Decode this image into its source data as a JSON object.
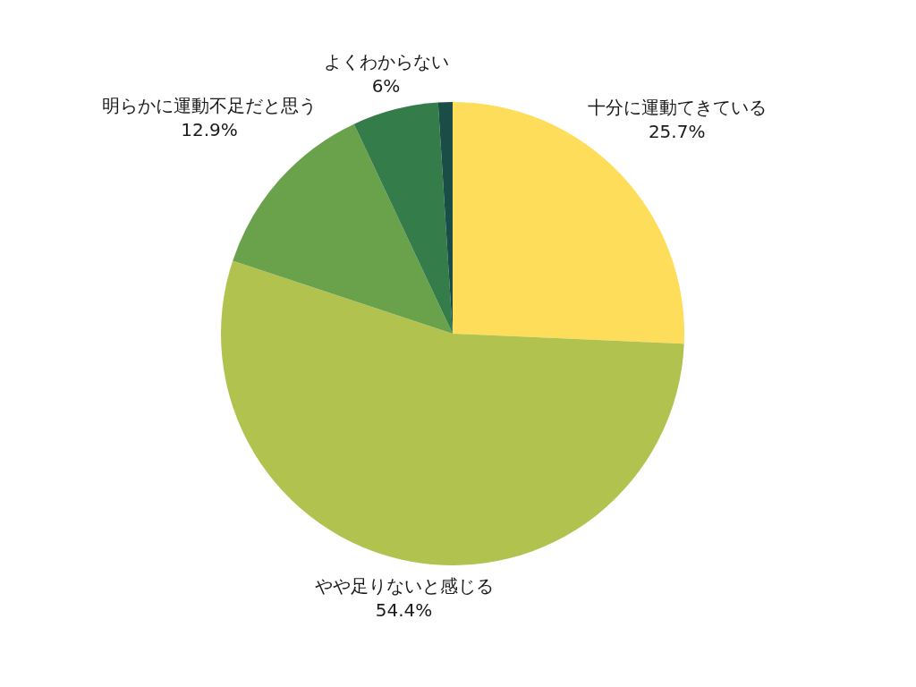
{
  "chart_data": {
    "type": "pie",
    "categories": [
      "十分に運動てきている",
      "やや足りないと感じる",
      "明らかに運動不足だと思う",
      "よくわからない",
      null
    ],
    "values": [
      25.7,
      54.4,
      12.9,
      6,
      1.0
    ],
    "colors": [
      "#fedd5a",
      "#b2c24f",
      "#6aa14b",
      "#347d4b",
      "#1b4d47"
    ],
    "value_labels": [
      "25.7%",
      "54.4%",
      "12.9%",
      "6%",
      null
    ]
  }
}
